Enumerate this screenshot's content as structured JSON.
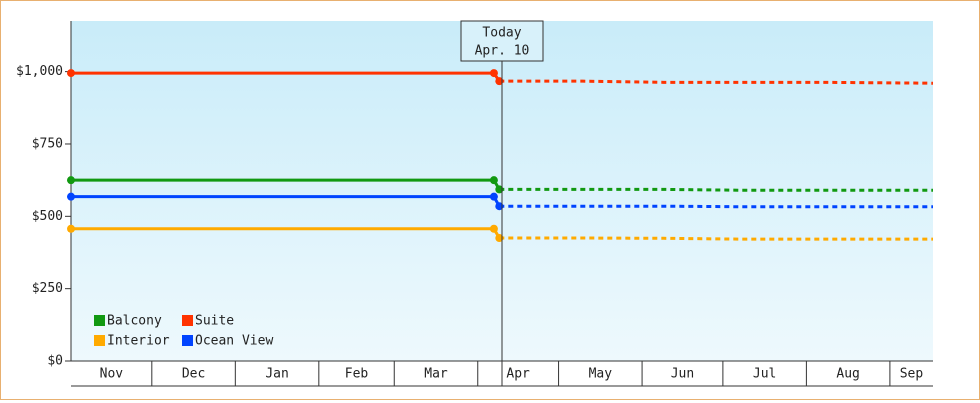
{
  "chart_data": {
    "type": "line",
    "annotation": {
      "title": "Today",
      "date": "Apr. 10",
      "x": 160
    },
    "xlim": [
      0,
      320
    ],
    "xticks": [
      0,
      30,
      61,
      92,
      120,
      151,
      181,
      212,
      242,
      273,
      304
    ],
    "categories": [
      "Nov",
      "Dec",
      "Jan",
      "Feb",
      "Mar",
      "Apr",
      "May",
      "Jun",
      "Jul",
      "Aug",
      "Sep"
    ],
    "ylim": [
      0,
      1175
    ],
    "yticks": [
      {
        "value": 0,
        "label": "$0"
      },
      {
        "value": 250,
        "label": "$250"
      },
      {
        "value": 500,
        "label": "$500"
      },
      {
        "value": 750,
        "label": "$750"
      },
      {
        "value": 1000,
        "label": "$1,000"
      }
    ],
    "x": [
      0,
      157,
      159,
      190,
      220,
      250,
      280,
      320
    ],
    "series": [
      {
        "name": "Balcony",
        "color": "#119911",
        "values": [
          625,
          625,
          null,
          null,
          null,
          null,
          null,
          null
        ],
        "forecast": [
          null,
          null,
          593,
          593,
          593,
          590,
          590,
          590
        ]
      },
      {
        "name": "Suite",
        "color": "#ff3300",
        "values": [
          995,
          995,
          null,
          null,
          null,
          null,
          null,
          null
        ],
        "forecast": [
          null,
          null,
          967,
          967,
          963,
          963,
          963,
          960
        ]
      },
      {
        "name": "Interior",
        "color": "#ffaa00",
        "values": [
          457,
          457,
          null,
          null,
          null,
          null,
          null,
          null
        ],
        "forecast": [
          null,
          null,
          425,
          425,
          424,
          421,
          421,
          421
        ]
      },
      {
        "name": "Ocean View",
        "color": "#0044ff",
        "values": [
          568,
          568,
          null,
          null,
          null,
          null,
          null,
          null
        ],
        "forecast": [
          null,
          null,
          535,
          535,
          535,
          533,
          533,
          533
        ]
      }
    ]
  }
}
